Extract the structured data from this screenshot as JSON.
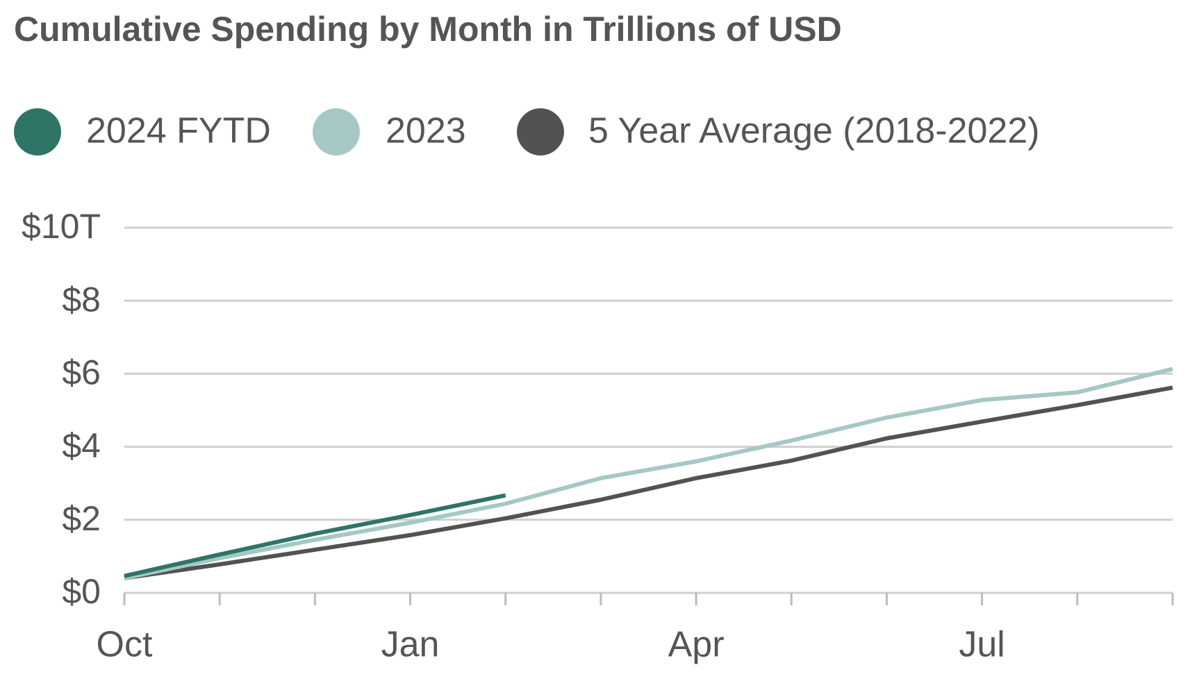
{
  "chart_data": {
    "type": "line",
    "title": "Cumulative Spending by Month in Trillions of USD",
    "categories": [
      "Oct",
      null,
      null,
      "Jan",
      null,
      null,
      "Apr",
      null,
      null,
      "Jul",
      null,
      null
    ],
    "series": [
      {
        "name": "2024 FYTD",
        "color": "#2e7566",
        "values": [
          0.46,
          1.05,
          1.62,
          2.13,
          2.67,
          null,
          null,
          null,
          null,
          null,
          null,
          null
        ]
      },
      {
        "name": "2023",
        "color": "#a5c8c4",
        "values": [
          0.4,
          0.95,
          1.45,
          1.92,
          2.44,
          3.14,
          3.6,
          4.17,
          4.8,
          5.28,
          5.49,
          6.13
        ]
      },
      {
        "name": "5 Year Average (2018-2022)",
        "color": "#525252",
        "values": [
          0.4,
          0.78,
          1.18,
          1.58,
          2.04,
          2.55,
          3.14,
          3.62,
          4.23,
          4.69,
          5.14,
          5.62
        ]
      }
    ],
    "ylim": [
      0,
      10
    ],
    "yticks": [
      {
        "value": 0,
        "label": "$0"
      },
      {
        "value": 2,
        "label": "$2"
      },
      {
        "value": 4,
        "label": "$4"
      },
      {
        "value": 6,
        "label": "$6"
      },
      {
        "value": 8,
        "label": "$8"
      },
      {
        "value": 10,
        "label": "$10T"
      }
    ],
    "grid": true,
    "legend": "top"
  }
}
